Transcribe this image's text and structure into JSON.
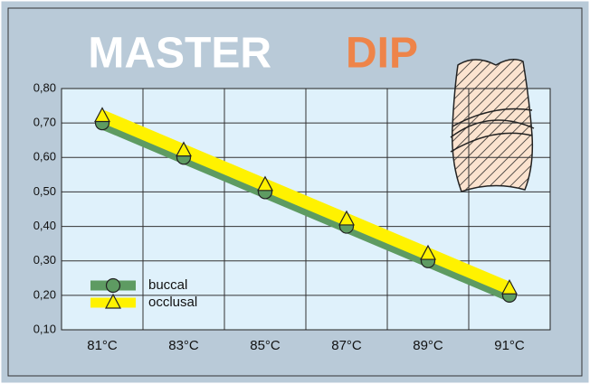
{
  "chart_data": {
    "type": "line",
    "title": "MASTER",
    "title_highlight": "DIP",
    "categories": [
      "81°C",
      "83°C",
      "85°C",
      "87°C",
      "89°C",
      "91°C"
    ],
    "series": [
      {
        "name": "buccal",
        "color": "#5e9b62",
        "marker": "circle",
        "values": [
          0.7,
          0.6,
          0.5,
          0.4,
          0.3,
          0.2
        ]
      },
      {
        "name": "occlusal",
        "color": "#fff200",
        "marker": "triangle",
        "values": [
          0.72,
          0.62,
          0.52,
          0.42,
          0.32,
          0.22
        ]
      }
    ],
    "ylim": [
      0.1,
      0.8
    ],
    "yticks": [
      {
        "value": 0.1,
        "label": "0,10"
      },
      {
        "value": 0.2,
        "label": "0,20"
      },
      {
        "value": 0.3,
        "label": "0,30"
      },
      {
        "value": 0.4,
        "label": "0,40"
      },
      {
        "value": 0.5,
        "label": "0,50"
      },
      {
        "value": 0.6,
        "label": "0,60"
      },
      {
        "value": 0.7,
        "label": "0,70"
      },
      {
        "value": 0.8,
        "label": "0,80"
      }
    ],
    "grid": true
  }
}
